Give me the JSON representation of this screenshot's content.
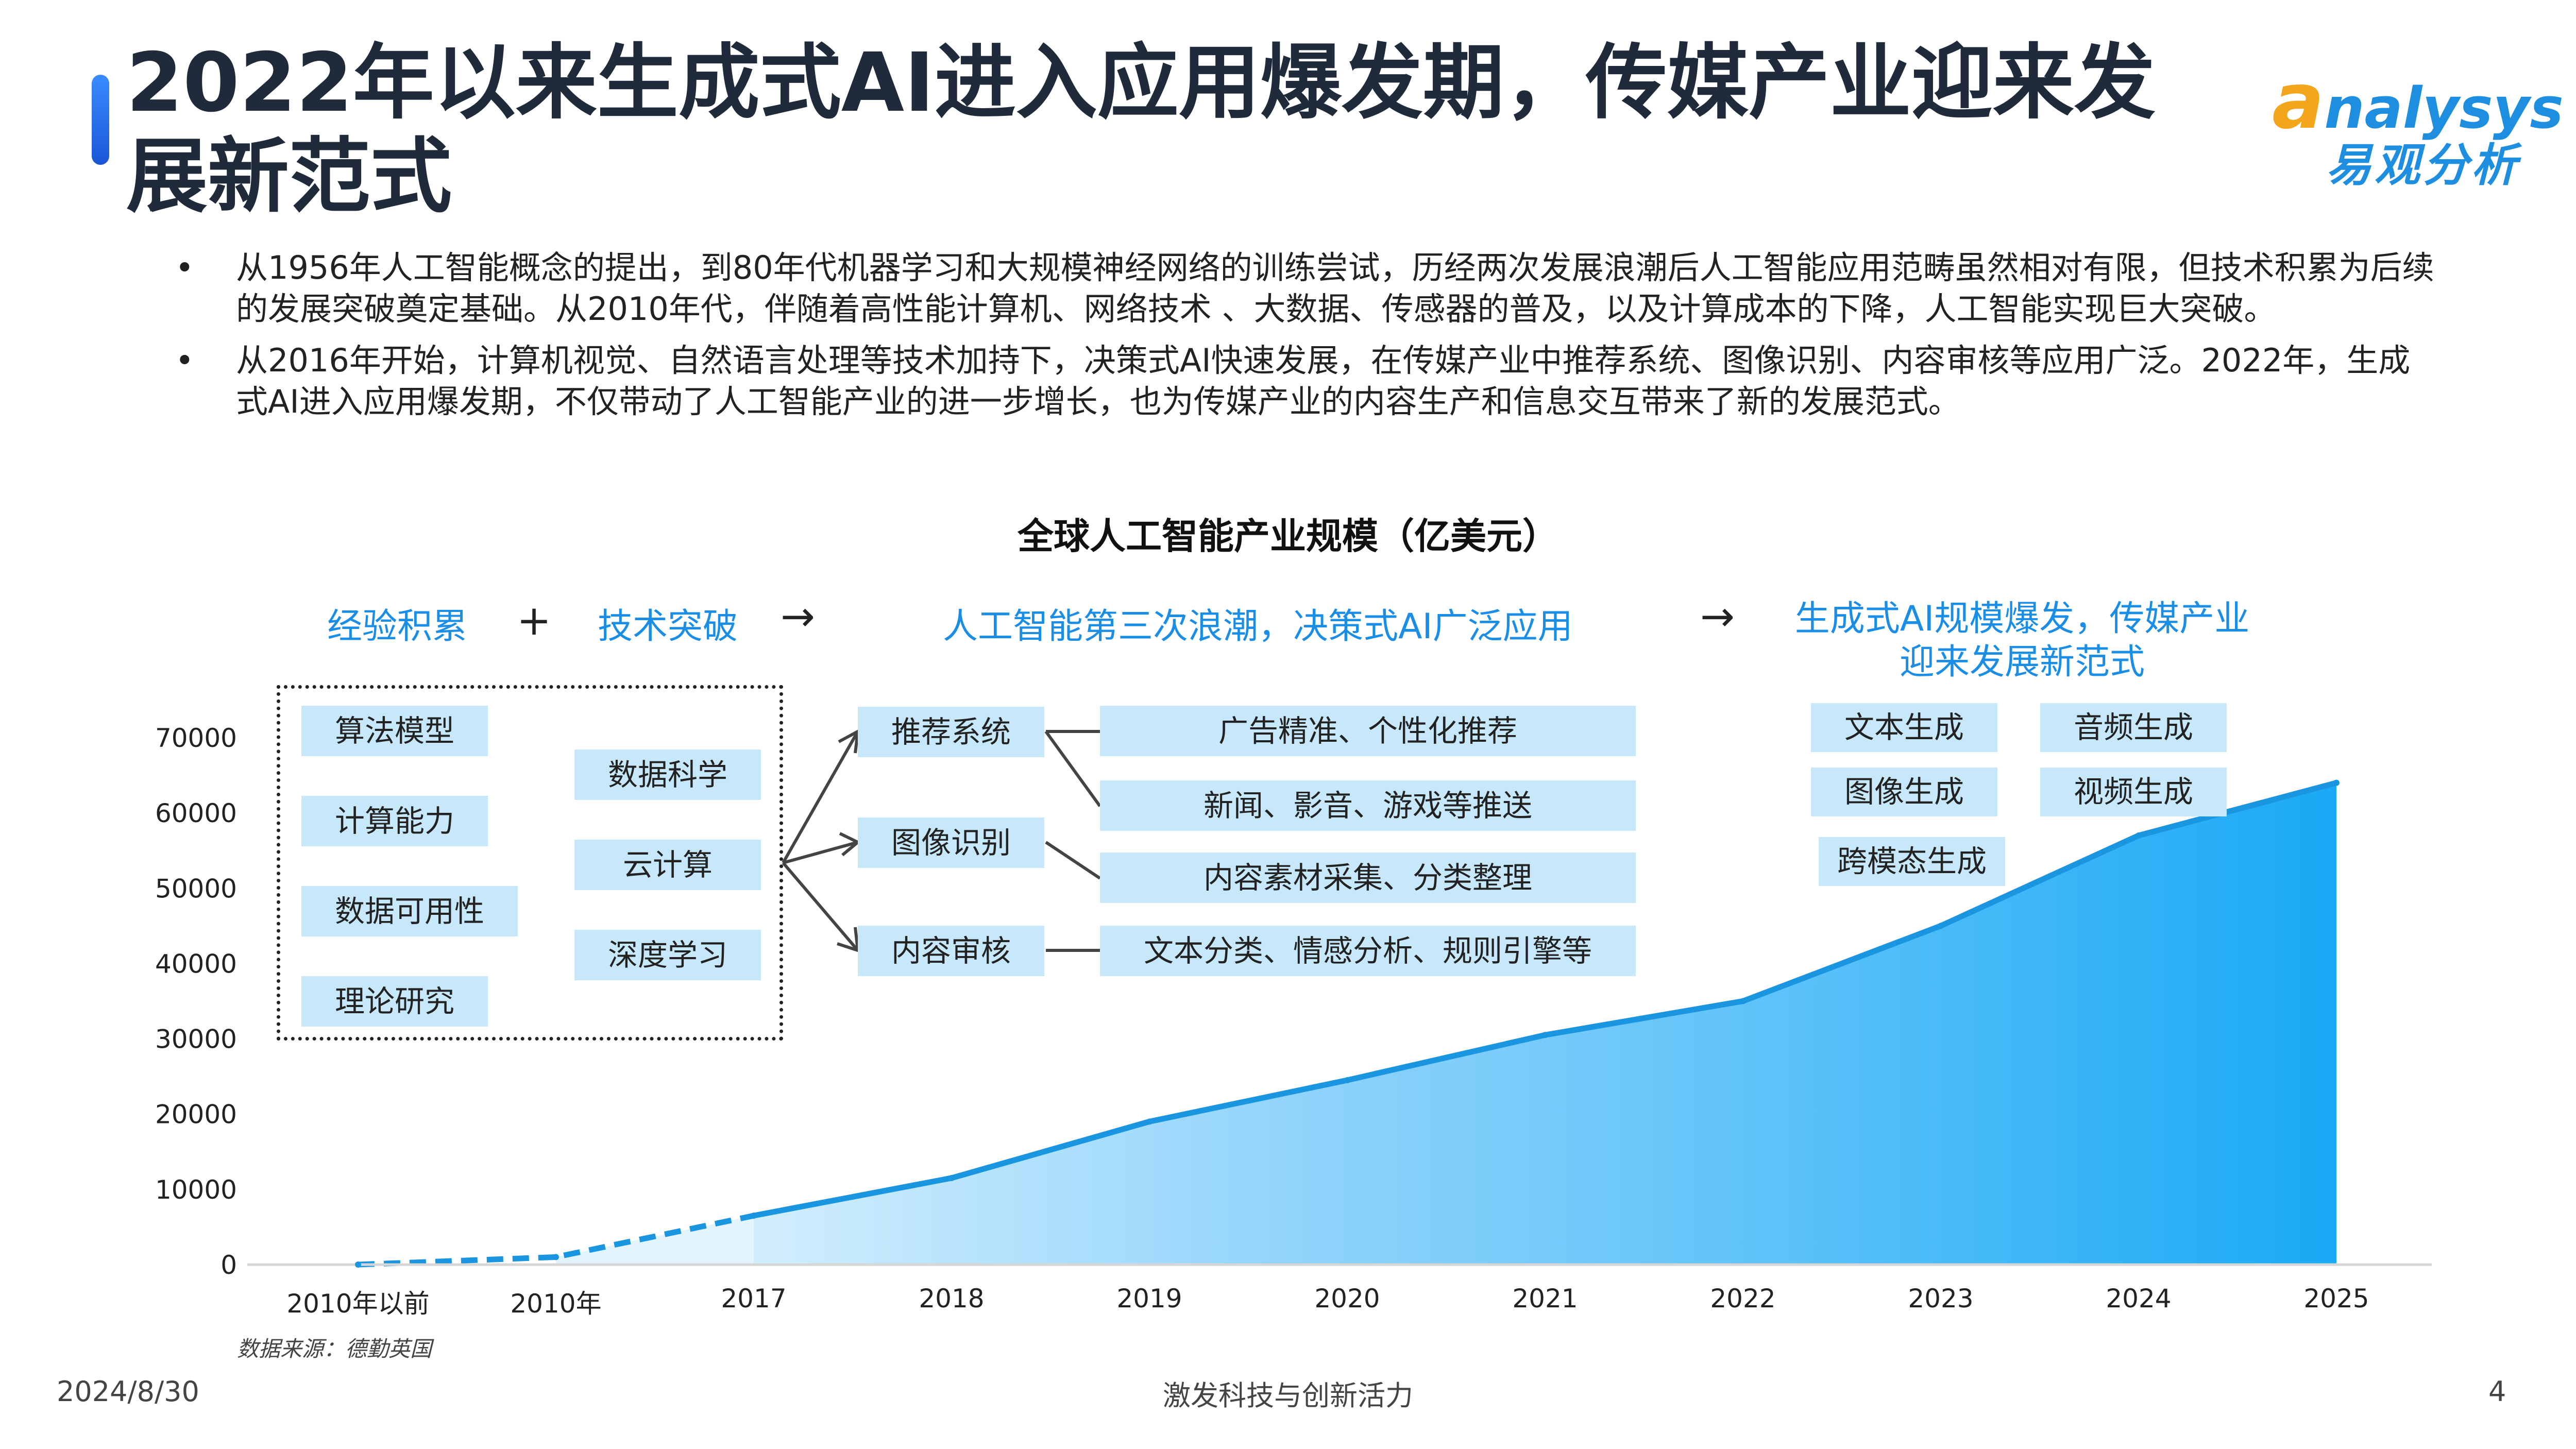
{
  "header": {
    "title": "2022年以来生成式AI进入应用爆发期，传媒产业迎来发展新范式",
    "logo_en_first": "a",
    "logo_en_rest": "nalysys",
    "logo_cn": "易观分析",
    "brand_color": "#1d8ee0",
    "logo_accent_color": "#f3a51c"
  },
  "bullets": [
    {
      "marker": "•",
      "text": "从1956年人工智能概念的提出，到80年代机器学习和大规模神经网络的训练尝试，历经两次发展浪潮后人工智能应用范畴虽然相对有限，但技术积累为后续的发展突破奠定基础。从2010年代，伴随着高性能计算机、网络技术 、大数据、传感器的普及，以及计算成本的下降，人工智能实现巨大突破。"
    },
    {
      "marker": "•",
      "text": "从2016年开始，计算机视觉、自然语言处理等技术加持下，决策式AI快速发展，在传媒产业中推荐系统、图像识别、内容审核等应用广泛。2022年，生成式AI进入应用爆发期，不仅带动了人工智能产业的进一步增长，也为传媒产业的内容生产和信息交互带来了新的发展范式。"
    }
  ],
  "stages": {
    "s1": "经验积累",
    "plus": "+",
    "s2": "技术突破",
    "arrow1": "→",
    "s3": "人工智能第三次浪潮，决策式AI广泛应用",
    "arrow2": "→",
    "s4_line1": "生成式AI规模爆发，传媒产业",
    "s4_line2": "迎来发展新范式"
  },
  "foundation_boxes": [
    "算法模型",
    "计算能力",
    "数据可用性",
    "理论研究"
  ],
  "tech_boxes": [
    "数据科学",
    "云计算",
    "深度学习"
  ],
  "decision_ai": [
    {
      "label": "推荐系统",
      "apps": [
        "广告精准、个性化推荐",
        "新闻、影音、游戏等推送"
      ]
    },
    {
      "label": "图像识别",
      "apps": [
        "内容素材采集、分类整理"
      ]
    },
    {
      "label": "内容审核",
      "apps": [
        "文本分类、情感分析、规则引擎等"
      ]
    }
  ],
  "genai_boxes": [
    "文本生成",
    "音频生成",
    "图像生成",
    "视频生成",
    "跨模态生成"
  ],
  "chart_data": {
    "type": "area",
    "title": "全球人工智能产业规模（亿美元）",
    "categories": [
      "2010年以前",
      "2010年",
      "2017",
      "2018",
      "2019",
      "2020",
      "2021",
      "2022",
      "2023",
      "2024",
      "2025"
    ],
    "values": [
      0,
      1000,
      6500,
      11500,
      19000,
      24500,
      30500,
      35000,
      45000,
      57000,
      64000
    ],
    "dashed_until_index": 2,
    "ylim": [
      0,
      70000
    ],
    "yticks": [
      0,
      10000,
      20000,
      30000,
      40000,
      50000,
      60000,
      70000
    ],
    "colors": {
      "line": "#1a96e0",
      "fill_light": "#c6e9fc",
      "fill_dark": "#19a9f5"
    },
    "grid": false
  },
  "footer": {
    "source": "数据来源：德勤英国",
    "date": "2024/8/30",
    "slogan": "激发科技与创新活力",
    "page": "4"
  }
}
